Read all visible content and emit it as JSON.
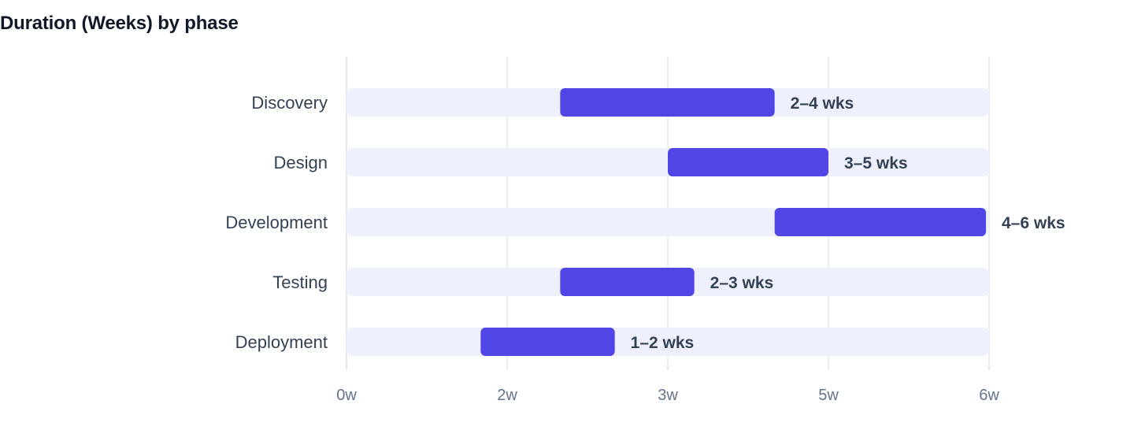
{
  "chart_data": {
    "type": "bar",
    "orientation": "horizontal-range",
    "title": "Duration (Weeks) by phase",
    "categories": [
      "Discovery",
      "Design",
      "Development",
      "Testing",
      "Deployment"
    ],
    "ranges": [
      [
        2,
        4
      ],
      [
        3,
        5
      ],
      [
        4,
        6
      ],
      [
        2,
        3
      ],
      [
        1,
        2
      ]
    ],
    "value_labels": [
      "2–4 wks",
      "3–5 wks",
      "4–6 wks",
      "2–3 wks",
      "1–2 wks"
    ],
    "x_ticks": [
      "0w",
      "2w",
      "3w",
      "5w",
      "6w"
    ],
    "grid": true,
    "colors": {
      "bar": "#4f46e5",
      "track": "#eef1fd",
      "grid": "#e5e7eb"
    }
  }
}
